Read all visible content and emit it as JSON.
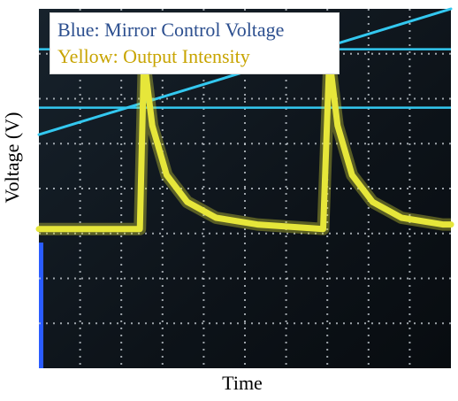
{
  "chart_data": {
    "type": "line",
    "title": "",
    "xlabel": "Time",
    "ylabel": "Voltage (V)",
    "grid": true,
    "xlim": [
      0,
      10
    ],
    "ylim": [
      0,
      8
    ],
    "legend": {
      "placement": "top-left",
      "entries": [
        {
          "text": "Blue: Mirror Control Voltage",
          "color": "#2c4f8f"
        },
        {
          "text": "Yellow: Output Intensity",
          "color": "#c8a400"
        }
      ]
    },
    "series": [
      {
        "name": "Blue: Mirror Control Voltage",
        "color": "#33c8f0",
        "x": [
          0,
          10
        ],
        "y": [
          5.2,
          8.0
        ]
      },
      {
        "name": "Yellow: Output Intensity",
        "color": "#e6e63a",
        "x": [
          0,
          2.45,
          2.55,
          2.75,
          3.1,
          3.6,
          4.3,
          5.3,
          6.9,
          7.05,
          7.25,
          7.6,
          8.1,
          8.8,
          9.8,
          10
        ],
        "y": [
          3.1,
          3.1,
          6.9,
          5.4,
          4.3,
          3.7,
          3.35,
          3.2,
          3.1,
          6.9,
          5.4,
          4.3,
          3.7,
          3.35,
          3.2,
          3.2
        ]
      }
    ],
    "reference_lines": [
      {
        "orientation": "horizontal",
        "y": 7.1,
        "color": "#33c8f0"
      },
      {
        "orientation": "horizontal",
        "y": 5.8,
        "color": "#33c8f0"
      }
    ]
  }
}
